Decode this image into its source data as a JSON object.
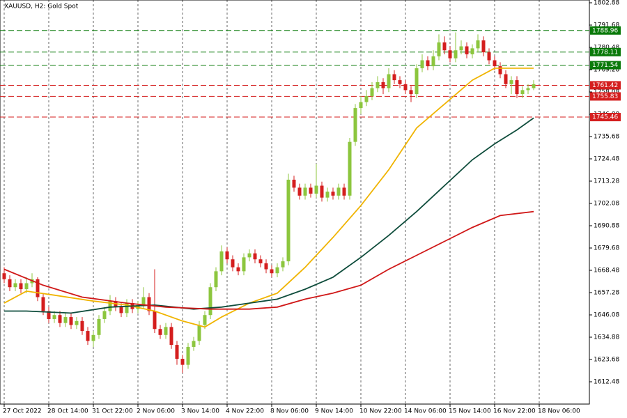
{
  "chart_data": {
    "type": "candlestick",
    "title": "XAUUSD, H2: Gold Spot",
    "up_color": "#8cc63e",
    "down_color": "#d41e1e",
    "grid": true,
    "xlim": [
      -0.75,
      105
    ],
    "xticks": [
      {
        "value": 0,
        "label": "27 Oct 2022"
      },
      {
        "value": 8,
        "label": "28 Oct 14:00"
      },
      {
        "value": 16,
        "label": "31 Oct 22:00"
      },
      {
        "value": 24,
        "label": "2 Nov 06:00"
      },
      {
        "value": 32,
        "label": "3 Nov 14:00"
      },
      {
        "value": 40,
        "label": "4 Nov 22:00"
      },
      {
        "value": 48,
        "label": "8 Nov 06:00"
      },
      {
        "value": 56,
        "label": "9 Nov 14:00"
      },
      {
        "value": 64,
        "label": "10 Nov 22:00"
      },
      {
        "value": 72,
        "label": "14 Nov 06:00"
      },
      {
        "value": 80,
        "label": "15 Nov 14:00"
      },
      {
        "value": 88,
        "label": "16 Nov 22:00"
      },
      {
        "value": 96,
        "label": "18 Nov 06:00"
      }
    ],
    "ylim": [
      1601.28,
      1804.28
    ],
    "yticks": [
      1802.88,
      1791.68,
      1780.48,
      1769.28,
      1758.08,
      1746.88,
      1735.68,
      1724.48,
      1713.28,
      1702.08,
      1690.88,
      1679.68,
      1668.48,
      1657.28,
      1646.08,
      1634.88,
      1623.68,
      1612.48
    ],
    "open": [
      1667,
      1664,
      1660,
      1662,
      1659,
      1662,
      1664,
      1655,
      1648,
      1644,
      1646,
      1642,
      1645,
      1641,
      1643,
      1638,
      1633,
      1636,
      1644,
      1648,
      1653,
      1650,
      1647,
      1652,
      1649,
      1651,
      1655,
      1648,
      1639,
      1636,
      1640,
      1631,
      1624,
      1621,
      1630,
      1633,
      1641,
      1646,
      1660,
      1668,
      1678,
      1674,
      1670,
      1668,
      1675,
      1677,
      1674,
      1672,
      1669,
      1667,
      1670,
      1673,
      1714,
      1710,
      1706,
      1710,
      1707,
      1711,
      1705,
      1708,
      1706,
      1710,
      1706,
      1733,
      1750,
      1753,
      1756,
      1760,
      1763,
      1760,
      1767,
      1764,
      1762,
      1759,
      1757,
      1770,
      1774,
      1771,
      1776,
      1783,
      1779,
      1775,
      1779,
      1781,
      1777,
      1780,
      1784,
      1778,
      1774,
      1771,
      1767,
      1762,
      1764,
      1757,
      1759,
      1760
    ],
    "high": [
      1670,
      1666,
      1664,
      1664,
      1665,
      1667,
      1665,
      1657,
      1650,
      1648,
      1648,
      1647,
      1647,
      1645,
      1645,
      1640,
      1638,
      1646,
      1650,
      1656,
      1655,
      1652,
      1654,
      1654,
      1653,
      1660,
      1657,
      1669,
      1641,
      1642,
      1642,
      1633,
      1626,
      1632,
      1635,
      1643,
      1648,
      1662,
      1670,
      1681,
      1680,
      1676,
      1672,
      1677,
      1679,
      1679,
      1676,
      1674,
      1671,
      1672,
      1675,
      1717,
      1716,
      1712,
      1712,
      1712,
      1722,
      1713,
      1710,
      1710,
      1712,
      1712,
      1735,
      1752,
      1756,
      1759,
      1763,
      1766,
      1765,
      1770,
      1769,
      1766,
      1764,
      1761,
      1772,
      1777,
      1776,
      1779,
      1787,
      1786,
      1781,
      1788,
      1784,
      1783,
      1782,
      1787,
      1786,
      1780,
      1776,
      1773,
      1769,
      1766,
      1766,
      1761,
      1762,
      1764
    ],
    "low": [
      1662,
      1658,
      1658,
      1657,
      1657,
      1660,
      1653,
      1646,
      1642,
      1642,
      1640,
      1640,
      1639,
      1639,
      1636,
      1631,
      1630,
      1634,
      1642,
      1646,
      1648,
      1645,
      1645,
      1647,
      1647,
      1649,
      1646,
      1637,
      1634,
      1634,
      1629,
      1621,
      1617,
      1619,
      1628,
      1631,
      1639,
      1644,
      1658,
      1666,
      1672,
      1668,
      1666,
      1666,
      1673,
      1672,
      1670,
      1667,
      1665,
      1665,
      1668,
      1671,
      1708,
      1704,
      1704,
      1705,
      1705,
      1703,
      1703,
      1704,
      1704,
      1704,
      1704,
      1731,
      1747,
      1751,
      1754,
      1758,
      1757,
      1758,
      1762,
      1760,
      1757,
      1753,
      1755,
      1768,
      1769,
      1769,
      1774,
      1777,
      1773,
      1773,
      1777,
      1775,
      1775,
      1778,
      1776,
      1772,
      1769,
      1765,
      1760,
      1757,
      1755,
      1755,
      1757,
      1759
    ],
    "close": [
      1664,
      1660,
      1662,
      1659,
      1662,
      1664,
      1655,
      1648,
      1644,
      1646,
      1642,
      1645,
      1641,
      1643,
      1638,
      1633,
      1636,
      1644,
      1648,
      1653,
      1650,
      1647,
      1652,
      1649,
      1651,
      1655,
      1648,
      1639,
      1636,
      1640,
      1631,
      1624,
      1621,
      1630,
      1633,
      1641,
      1646,
      1660,
      1668,
      1678,
      1674,
      1670,
      1668,
      1675,
      1677,
      1674,
      1672,
      1669,
      1667,
      1670,
      1673,
      1714,
      1710,
      1706,
      1710,
      1707,
      1711,
      1705,
      1708,
      1706,
      1710,
      1706,
      1733,
      1750,
      1753,
      1756,
      1760,
      1763,
      1760,
      1767,
      1764,
      1762,
      1759,
      1757,
      1770,
      1774,
      1771,
      1776,
      1783,
      1779,
      1775,
      1779,
      1781,
      1777,
      1780,
      1784,
      1778,
      1774,
      1771,
      1767,
      1762,
      1764,
      1757,
      1759,
      1760,
      1762
    ],
    "moving_averages": [
      {
        "color": "#f0b400",
        "x": [
          0,
          4,
          9,
          16,
          22,
          27,
          32,
          36,
          39,
          44,
          49,
          54,
          59,
          64,
          69,
          74,
          79,
          84,
          88,
          92,
          95
        ],
        "values": [
          1652,
          1658,
          1656,
          1653,
          1651,
          1648,
          1643,
          1640,
          1645,
          1652,
          1657,
          1670,
          1685,
          1701,
          1719,
          1740,
          1752,
          1764,
          1770,
          1770,
          1770
        ]
      },
      {
        "color": "#0f4d3c",
        "x": [
          0,
          4,
          12,
          19,
          27,
          34,
          39,
          44,
          49,
          54,
          59,
          64,
          69,
          74,
          79,
          84,
          88,
          92,
          95
        ],
        "values": [
          1648,
          1648,
          1647,
          1650,
          1651,
          1649,
          1650,
          1652,
          1654,
          1659,
          1665,
          1675,
          1686,
          1698,
          1711,
          1724,
          1732,
          1739,
          1745
        ]
      },
      {
        "color": "#d01818",
        "x": [
          0,
          7,
          14,
          22,
          29,
          37,
          44,
          49,
          54,
          59,
          64,
          69,
          74,
          79,
          84,
          89,
          95
        ],
        "values": [
          1669,
          1661,
          1655,
          1652,
          1650,
          1649,
          1649,
          1650,
          1654,
          1657,
          1661,
          1669,
          1676,
          1683,
          1690,
          1696,
          1698
        ]
      }
    ],
    "levels": [
      {
        "value": 1788.96,
        "color": "#0a7a0a"
      },
      {
        "value": 1778.11,
        "color": "#0a7a0a"
      },
      {
        "value": 1771.54,
        "color": "#0a7a0a"
      },
      {
        "value": 1761.42,
        "color": "#d41e1e"
      },
      {
        "value": 1755.83,
        "color": "#d41e1e"
      },
      {
        "value": 1745.46,
        "color": "#d41e1e"
      }
    ]
  }
}
